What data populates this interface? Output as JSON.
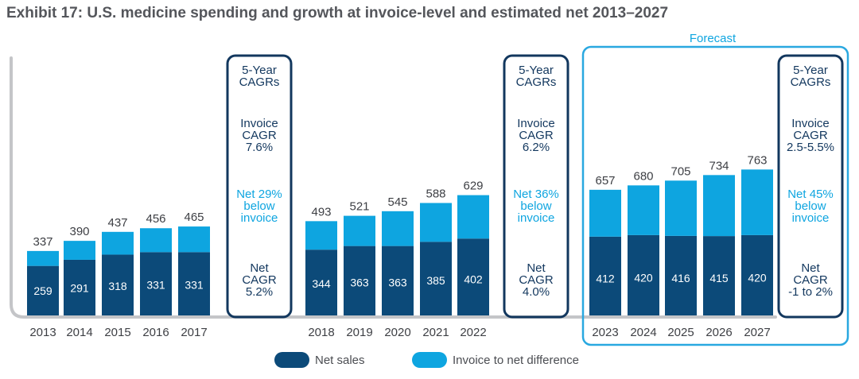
{
  "chart_data": {
    "type": "bar",
    "stacked": true,
    "title": "Exhibit 17: U.S. medicine spending and growth at invoice-level and estimated net 2013–2027",
    "categories": [
      "2013",
      "2014",
      "2015",
      "2016",
      "2017",
      "2018",
      "2019",
      "2020",
      "2021",
      "2022",
      "2023",
      "2024",
      "2025",
      "2026",
      "2027"
    ],
    "series": [
      {
        "name": "Net sales",
        "color": "#0c4a79",
        "values": [
          259,
          291,
          318,
          331,
          331,
          344,
          363,
          363,
          385,
          402,
          412,
          420,
          416,
          415,
          420
        ]
      },
      {
        "name": "Invoice to net difference",
        "color": "#0ea5e0",
        "values": [
          78,
          99,
          119,
          125,
          134,
          149,
          158,
          182,
          203,
          227,
          245,
          260,
          289,
          319,
          343
        ]
      }
    ],
    "totals": [
      "337",
      "390",
      "437",
      "456",
      "465",
      "493",
      "521",
      "545",
      "588",
      "629",
      "657",
      "680",
      "705",
      "734",
      "763"
    ],
    "net_labels": [
      "259",
      "291",
      "318",
      "331",
      "331",
      "344",
      "363",
      "363",
      "385",
      "402",
      "412",
      "420",
      "416",
      "415",
      "420"
    ],
    "ylim": [
      0,
      800
    ],
    "legend": [
      {
        "label": "Net sales",
        "color": "#0c4a79"
      },
      {
        "label": "Invoice to net difference",
        "color": "#0ea5e0"
      }
    ],
    "forecast_label": "Forecast",
    "cagr_boxes": [
      {
        "header": [
          "5-Year",
          "CAGRs"
        ],
        "invoice": [
          "Invoice",
          "CAGR",
          "7.6%"
        ],
        "net_below": [
          "Net 29%",
          "below",
          "invoice"
        ],
        "net_cagr": [
          "Net",
          "CAGR",
          "5.2%"
        ]
      },
      {
        "header": [
          "5-Year",
          "CAGRs"
        ],
        "invoice": [
          "Invoice",
          "CAGR",
          "6.2%"
        ],
        "net_below": [
          "Net 36%",
          "below",
          "invoice"
        ],
        "net_cagr": [
          "Net",
          "CAGR",
          "4.0%"
        ]
      },
      {
        "header": [
          "5-Year",
          "CAGRs"
        ],
        "invoice": [
          "Invoice",
          "CAGR",
          "2.5-5.5%"
        ],
        "net_below": [
          "Net 45%",
          "below",
          "invoice"
        ],
        "net_cagr": [
          "Net",
          "CAGR",
          "-1 to 2%"
        ]
      }
    ]
  },
  "colors": {
    "net": "#0c4a79",
    "diff": "#0ea5e0",
    "box_border": "#12375e",
    "forecast_border": "#29a8e0",
    "axis": "#c4c5c8"
  }
}
